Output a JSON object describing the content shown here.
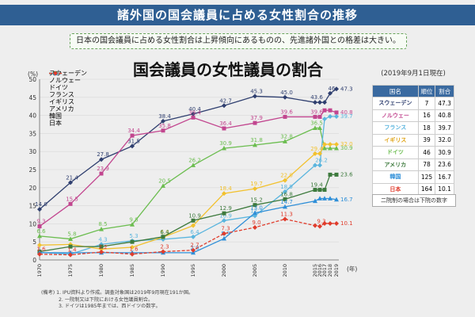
{
  "header": {
    "title": "諸外国の国会議員に占める女性割合の推移",
    "subtitle": "日本の国会議員に占める女性割合は上昇傾向にあるものの、先進諸外国との格差は大きい。"
  },
  "chart_data": {
    "type": "line",
    "title": "国会議員の女性議員の割合",
    "ylabel": "(%)",
    "xlabel": "(年)",
    "ylim": [
      0,
      50
    ],
    "yticks": [
      "0",
      "5",
      "10",
      "15",
      "20",
      "25",
      "30",
      "35",
      "40",
      "45",
      "50"
    ],
    "categories": [
      "1970",
      "1975",
      "1980",
      "1985",
      "1990",
      "1995",
      "2000",
      "2005",
      "2010",
      "2015",
      "2016",
      "2017",
      "2018",
      "2019"
    ],
    "series": [
      {
        "name": "スウェーデン",
        "color": "#2f3f6f",
        "dash": "",
        "marker": "diamond",
        "points": [
          [
            1970,
            14.0
          ],
          [
            1975,
            21.4
          ],
          [
            1980,
            27.8
          ],
          [
            1985,
            31.5
          ],
          [
            1990,
            38.4
          ],
          [
            1995,
            40.4
          ],
          [
            2000,
            42.7
          ],
          [
            2005,
            45.3
          ],
          [
            2010,
            45.0
          ],
          [
            2015,
            43.6
          ],
          [
            2016,
            43.6
          ],
          [
            2017,
            43.6
          ],
          [
            2018,
            46.1
          ],
          [
            2019,
            47.3
          ]
        ],
        "labels": [
          [
            "14.0",
            1970,
            14.0
          ],
          [
            "21.4",
            1975,
            21.4
          ],
          [
            "27.8",
            1980,
            27.8
          ],
          [
            "31.5",
            1985,
            31.5
          ],
          [
            "38.4",
            1990,
            38.4
          ],
          [
            "40.4",
            1995,
            40.4
          ],
          [
            "42.7",
            2000,
            42.7
          ],
          [
            "45.3",
            2005,
            45.3
          ],
          [
            "45.0",
            2010,
            45.0
          ],
          [
            "43.6",
            2015,
            43.6
          ],
          [
            "46",
            2018,
            46.1
          ],
          [
            "47.3",
            2019,
            47.3
          ]
        ]
      },
      {
        "name": "ノルウェー",
        "color": "#c2468f",
        "dash": "",
        "marker": "square",
        "points": [
          [
            1970,
            9.3
          ],
          [
            1975,
            15.5
          ],
          [
            1980,
            23.9
          ],
          [
            1985,
            34.4
          ],
          [
            1990,
            35.8
          ],
          [
            1995,
            39.4
          ],
          [
            2000,
            36.4
          ],
          [
            2005,
            37.9
          ],
          [
            2010,
            39.6
          ],
          [
            2015,
            39.6
          ],
          [
            2016,
            39.6
          ],
          [
            2017,
            41.4
          ],
          [
            2018,
            41.4
          ],
          [
            2019,
            40.8
          ]
        ],
        "labels": [
          [
            "9.3",
            1970,
            9.3
          ],
          [
            "15.5",
            1975,
            15.5
          ],
          [
            "23.9",
            1980,
            23.9
          ],
          [
            "34.4",
            1985,
            34.4
          ],
          [
            "35.8",
            1990,
            35.8
          ],
          [
            "39.4",
            1995,
            39.4
          ],
          [
            "36.4",
            2000,
            36.4
          ],
          [
            "37.9",
            2005,
            37.9
          ],
          [
            "39.6",
            2010,
            39.6
          ],
          [
            "39.6",
            2015,
            39.6
          ],
          [
            "40.8",
            2019,
            40.8
          ]
        ]
      },
      {
        "name": "ドイツ",
        "color": "#6bbd4f",
        "dash": "",
        "marker": "triangle",
        "points": [
          [
            1970,
            6.6
          ],
          [
            1975,
            5.8
          ],
          [
            1980,
            8.5
          ],
          [
            1985,
            9.8
          ],
          [
            1990,
            20.5
          ],
          [
            1995,
            26.2
          ],
          [
            2000,
            30.9
          ],
          [
            2005,
            31.8
          ],
          [
            2010,
            32.8
          ],
          [
            2015,
            36.5
          ],
          [
            2016,
            36.5
          ],
          [
            2017,
            30.9
          ],
          [
            2018,
            30.9
          ],
          [
            2019,
            30.9
          ]
        ],
        "labels": [
          [
            "6.6",
            1970,
            6.6
          ],
          [
            "5.8",
            1975,
            5.8
          ],
          [
            "8.5",
            1980,
            8.5
          ],
          [
            "9.8",
            1985,
            9.8
          ],
          [
            "20.5",
            1990,
            20.5
          ],
          [
            "26.2",
            1995,
            26.2
          ],
          [
            "30.9",
            2000,
            30.9
          ],
          [
            "31.8",
            2005,
            31.8
          ],
          [
            "32.8",
            2010,
            32.8
          ],
          [
            "36.5",
            2015,
            36.5
          ],
          [
            "30.9",
            2019,
            30.9
          ]
        ]
      },
      {
        "name": "フランス",
        "color": "#5ab5de",
        "dash": "",
        "marker": "diamond",
        "points": [
          [
            1970,
            2.1
          ],
          [
            1975,
            1.6
          ],
          [
            1980,
            4.3
          ],
          [
            1985,
            5.3
          ],
          [
            1990,
            5.7
          ],
          [
            1995,
            6.4
          ],
          [
            2000,
            10.9
          ],
          [
            2005,
            12.2
          ],
          [
            2010,
            18.9
          ],
          [
            2015,
            26.2
          ],
          [
            2016,
            26.2
          ],
          [
            2017,
            39.0
          ],
          [
            2018,
            39.7
          ],
          [
            2019,
            39.7
          ]
        ],
        "labels": [
          [
            "4.3",
            1980,
            4.3
          ],
          [
            "5.3",
            1985,
            5.3
          ],
          [
            "5.7",
            1990,
            5.7
          ],
          [
            "6.4",
            1995,
            6.4
          ],
          [
            "10.9",
            2000,
            10.9
          ],
          [
            "12.2",
            2005,
            12.2
          ],
          [
            "18.9",
            2010,
            18.9
          ],
          [
            "26.2",
            2016,
            26.2
          ],
          [
            "39.7",
            2019,
            39.7
          ]
        ]
      },
      {
        "name": "イギリス",
        "color": "#f2c12e",
        "dash": "",
        "marker": "diamond",
        "points": [
          [
            1970,
            4.1
          ],
          [
            1975,
            4.3
          ],
          [
            1980,
            3.0
          ],
          [
            1985,
            3.5
          ],
          [
            1990,
            6.3
          ],
          [
            1995,
            9.5
          ],
          [
            2000,
            18.4
          ],
          [
            2005,
            19.7
          ],
          [
            2010,
            22.0
          ],
          [
            2015,
            29.4
          ],
          [
            2016,
            29.4
          ],
          [
            2017,
            32.0
          ],
          [
            2018,
            32.0
          ],
          [
            2019,
            32.0
          ]
        ],
        "labels": [
          [
            "6.3",
            1990,
            6.3
          ],
          [
            "18.4",
            2000,
            18.4
          ],
          [
            "19.7",
            2005,
            19.7
          ],
          [
            "22.0",
            2010,
            22.0
          ],
          [
            "29.4",
            2015,
            29.4
          ],
          [
            "32.0",
            2019,
            32.0
          ]
        ]
      },
      {
        "name": "アメリカ",
        "color": "#3d7a3d",
        "dash": "",
        "marker": "square",
        "points": [
          [
            1970,
            2.3
          ],
          [
            1975,
            3.7
          ],
          [
            1980,
            3.7
          ],
          [
            1985,
            5.0
          ],
          [
            1990,
            6.4
          ],
          [
            1995,
            10.9
          ],
          [
            2000,
            12.9
          ],
          [
            2005,
            15.2
          ],
          [
            2010,
            16.8
          ],
          [
            2015,
            19.4
          ],
          [
            2016,
            19.4
          ],
          [
            2017,
            19.4
          ],
          [
            2018,
            23.6
          ],
          [
            2019,
            23.6
          ]
        ],
        "labels": [
          [
            "6.4",
            1990,
            6.4
          ],
          [
            "10.9",
            1995,
            10.9
          ],
          [
            "12.9",
            2000,
            12.9
          ],
          [
            "15.2",
            2005,
            15.2
          ],
          [
            "16.8",
            2010,
            16.8
          ],
          [
            "19.4",
            2015,
            19.4
          ],
          [
            "23.6",
            2019,
            23.6
          ]
        ]
      },
      {
        "name": "韓国",
        "color": "#2f8fd8",
        "dash": "",
        "marker": "triangle",
        "points": [
          [
            1970,
            2.0
          ],
          [
            1975,
            2.0
          ],
          [
            1980,
            2.0
          ],
          [
            1985,
            2.0
          ],
          [
            1990,
            2.0
          ],
          [
            1995,
            2.0
          ],
          [
            2000,
            5.9
          ],
          [
            2005,
            13.0
          ],
          [
            2010,
            14.7
          ],
          [
            2015,
            16.3
          ],
          [
            2016,
            17.0
          ],
          [
            2017,
            17.0
          ],
          [
            2018,
            17.0
          ],
          [
            2019,
            16.7
          ]
        ],
        "labels": [
          [
            "2.0",
            1995,
            2.0
          ],
          [
            "5.9",
            2000,
            5.9
          ],
          [
            "13.0",
            2005,
            13.0
          ],
          [
            "14.7",
            2010,
            14.7
          ],
          [
            "16.7",
            2019,
            16.7
          ]
        ]
      },
      {
        "name": "日本",
        "color": "#e03c2c",
        "dash": "4,2",
        "marker": "diamond",
        "points": [
          [
            1970,
            1.6
          ],
          [
            1975,
            1.4
          ],
          [
            1980,
            2.2
          ],
          [
            1985,
            1.6
          ],
          [
            1990,
            2.3
          ],
          [
            1995,
            2.7
          ],
          [
            2000,
            7.3
          ],
          [
            2005,
            9.0
          ],
          [
            2010,
            11.3
          ],
          [
            2015,
            9.5
          ],
          [
            2016,
            9.3
          ],
          [
            2017,
            10.1
          ],
          [
            2018,
            10.1
          ],
          [
            2019,
            10.1
          ]
        ],
        "labels": [
          [
            "1.6",
            1970,
            1.6
          ],
          [
            "1.4",
            1975,
            1.4
          ],
          [
            "2.2",
            1980,
            2.2
          ],
          [
            "1.6",
            1985,
            1.6
          ],
          [
            "2.3",
            1990,
            2.3
          ],
          [
            "2.7",
            1995,
            2.7
          ],
          [
            "7.3",
            2000,
            7.3
          ],
          [
            "9.0",
            2005,
            9.0
          ],
          [
            "11.3",
            2010,
            11.3
          ],
          [
            "9.3",
            2016,
            9.3
          ],
          [
            "10.1",
            2019,
            10.1
          ]
        ]
      }
    ]
  },
  "table": {
    "date_note": "(2019年9月1日現在)",
    "headers": [
      "国名",
      "順位",
      "割合"
    ],
    "rows": [
      {
        "name": "スウェーデン",
        "rank": "7",
        "pct": "47.3",
        "color": "#2f3f6f"
      },
      {
        "name": "ノルウェー",
        "rank": "16",
        "pct": "40.8",
        "color": "#c2468f"
      },
      {
        "name": "フランス",
        "rank": "18",
        "pct": "39.7",
        "color": "#5ab5de"
      },
      {
        "name": "イギリス",
        "rank": "39",
        "pct": "32.0",
        "color": "#e0a51a"
      },
      {
        "name": "ドイツ",
        "rank": "46",
        "pct": "30.9",
        "color": "#6bbd4f"
      },
      {
        "name": "アメリカ",
        "rank": "78",
        "pct": "23.6",
        "color": "#3d7a3d"
      },
      {
        "name": "韓国",
        "rank": "125",
        "pct": "16.7",
        "color": "#2f8fd8"
      },
      {
        "name": "日本",
        "rank": "164",
        "pct": "10.1",
        "color": "#e03c2c"
      }
    ],
    "note": "二院制の場合は下院の数字"
  },
  "footnotes": [
    "(備考) 1. IPU資料より作成。調査対象国は2019年9月現在191か国。",
    "2. 一院制又は下院における女性議員割合。",
    "3. ドイツは1985年までは、西ドイツの数字。"
  ]
}
